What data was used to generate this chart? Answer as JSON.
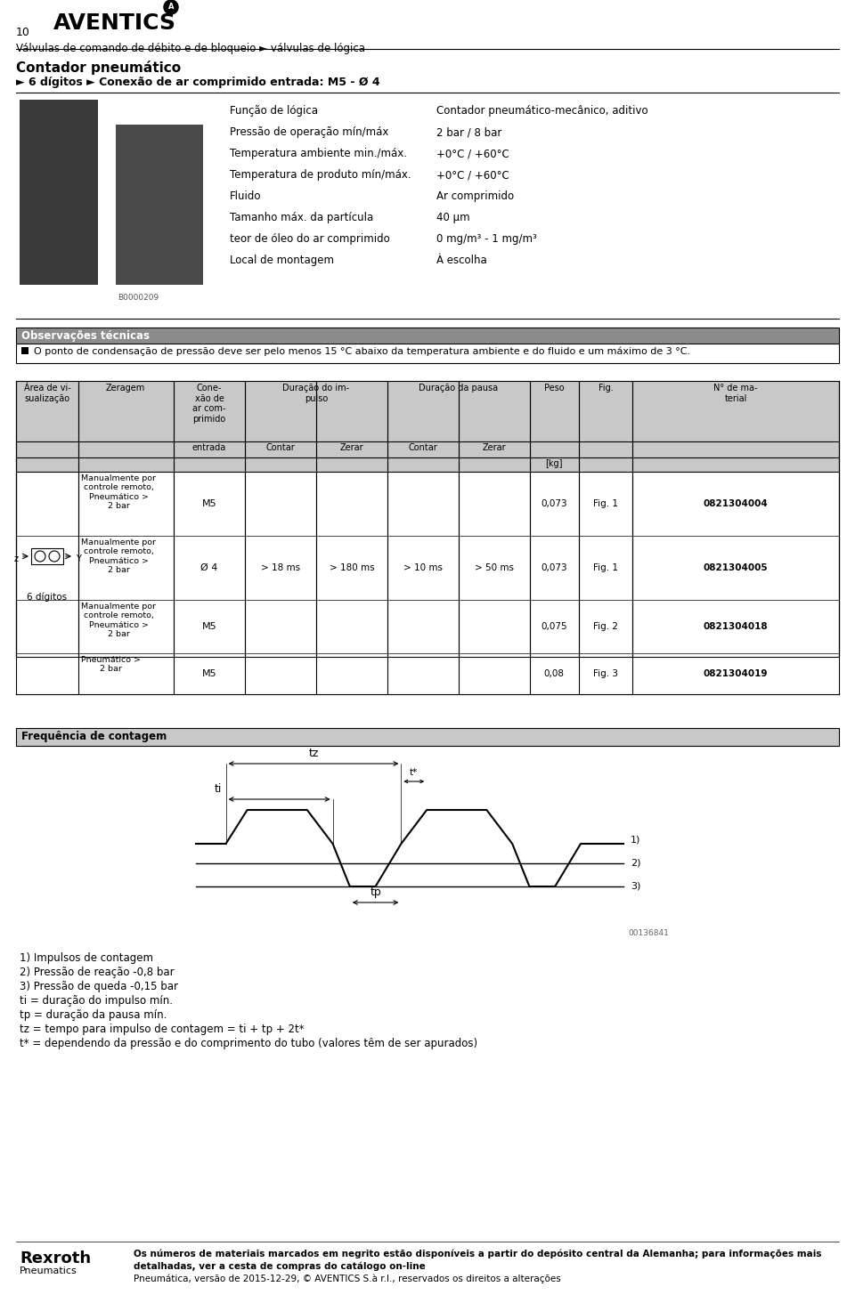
{
  "page_number": "10",
  "brand": "AVENTICS",
  "subtitle": "Válvulas de comando de débito e de bloqueio ► válvulas de lógica",
  "product_title": "Contador pneumático",
  "product_subtitle": "► 6 dígitos ► Conexão de ar comprimido entrada: M5 - Ø 4",
  "spec_labels": [
    "Função de lógica",
    "Pressão de operação mín/máx",
    "Temperatura ambiente min./máx.",
    "Temperatura de produto mín/máx.",
    "Fluido",
    "Tamanho máx. da partícula",
    "teor de óleo do ar comprimido",
    "Local de montagem"
  ],
  "spec_values": [
    "Contador pneumático-mecânico, aditivo",
    "2 bar / 8 bar",
    "+0°C / +60°C",
    "+0°C / +60°C",
    "Ar comprimido",
    "40 µm",
    "0 mg/m³ - 1 mg/m³",
    "À escolha"
  ],
  "image_label": "B0000209",
  "obs_title": "Observações técnicas",
  "obs_text": "O ponto de condensação de pressão deve ser pelo menos 15 °C abaixo da temperatura ambiente e do fluido e um máximo de 3 °C.",
  "table_col_sub": [
    "Contar",
    "Zerar",
    "Contar",
    "Zerar"
  ],
  "table_rows": [
    {
      "zeragem": "Manualmente por\ncontrole remoto,\nPneumático >\n2 bar",
      "conexao": "M5",
      "dur_imp_contar": "",
      "dur_imp_zerar": "",
      "dur_pau_contar": "",
      "dur_pau_zerar": "",
      "weight": "0,073",
      "fig": "Fig. 1",
      "material": "0821304004"
    },
    {
      "zeragem": "Manualmente por\ncontrole remoto,\nPneumático >\n2 bar",
      "conexao": "Ø 4",
      "dur_imp_contar": "> 18 ms",
      "dur_imp_zerar": "> 180 ms",
      "dur_pau_contar": "> 10 ms",
      "dur_pau_zerar": "> 50 ms",
      "weight": "0,073",
      "fig": "Fig. 1",
      "material": "0821304005"
    },
    {
      "zeragem": "Manualmente por\ncontrole remoto,\nPneumático >\n2 bar",
      "conexao": "M5",
      "dur_imp_contar": "",
      "dur_imp_zerar": "",
      "dur_pau_contar": "",
      "dur_pau_zerar": "",
      "weight": "0,075",
      "fig": "Fig. 2",
      "material": "0821304018"
    },
    {
      "zeragem": "Pneumático >\n2 bar",
      "conexao": "M5",
      "dur_imp_contar": "",
      "dur_imp_zerar": "",
      "dur_pau_contar": "",
      "dur_pau_zerar": "",
      "weight": "0,08",
      "fig": "Fig. 3",
      "material": "0821304019"
    }
  ],
  "row_label": "6 dígitos",
  "freq_title": "Frequência de contagem",
  "freq_notes": [
    "1) Impulsos de contagem",
    "2) Pressão de reação -0,8 bar",
    "3) Pressão de queda -0,15 bar",
    "ti = duração do impulso mín.",
    "tp = duração da pausa mín.",
    "tz = tempo para impulso de contagem = ti + tp + 2t*",
    "t* = dependendo da pressão e do comprimento do tubo (valores têm de ser apurados)"
  ],
  "freq_image_label": "00136841",
  "footer_bold_line1": "Os números de materiais marcados em negrito estão disponíveis a partir do depósito central da Alemanha; para informações mais",
  "footer_bold_line2": "detalhadas, ver a cesta de compras do catálogo on-line",
  "footer_normal": "Pneumática, versão de 2015-12-29, © AVENTICS S.à r.l., reservados os direitos a alterações",
  "rexroth_brand": "Rexroth",
  "rexroth_sub": "Pneumatics",
  "bg_color": "#ffffff",
  "gray_header": "#8c8c8c",
  "gray_table": "#a0a0a0",
  "gray_light": "#c8c8c8"
}
